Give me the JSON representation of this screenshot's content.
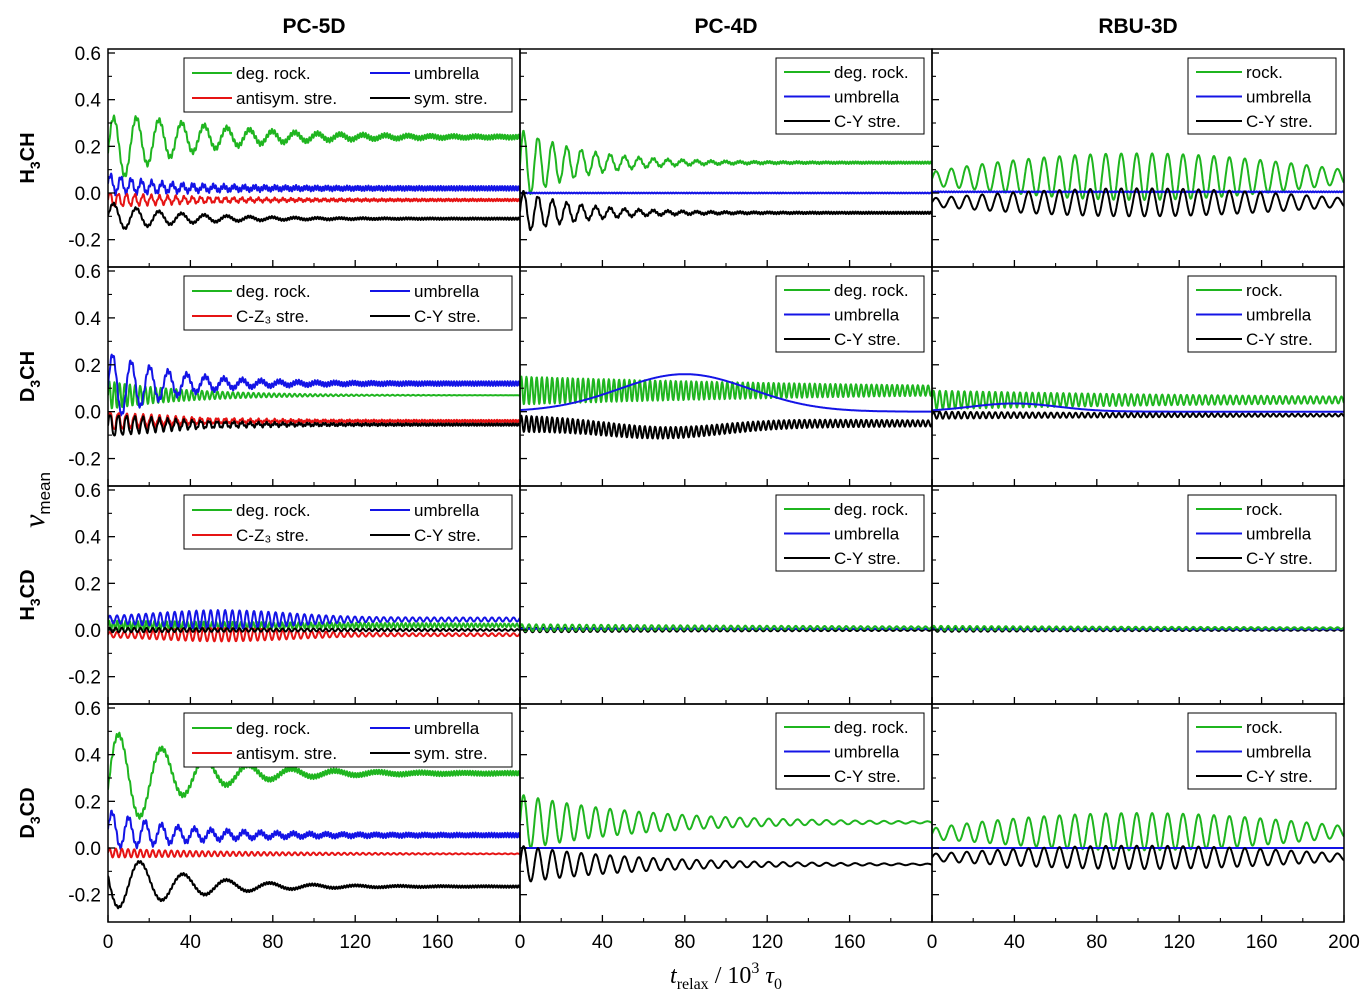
{
  "colors": {
    "green": "#1fb51f",
    "blue": "#1414e6",
    "red": "#e61414",
    "black": "#000000"
  },
  "chart_data": {
    "type": "line",
    "columns": [
      "PC-5D",
      "PC-4D",
      "RBU-3D"
    ],
    "rows": [
      {
        "label": "H",
        "sub": "3",
        "tail": "CH"
      },
      {
        "label": "D",
        "sub": "3",
        "tail": "CH"
      },
      {
        "label": "H",
        "sub": "3",
        "tail": "CD"
      },
      {
        "label": "D",
        "sub": "3",
        "tail": "CD"
      }
    ],
    "ylabel": {
      "main": "ν",
      "sub": "mean"
    },
    "xlabel": {
      "t": "t",
      "tsub": "relax",
      "mid": " / 10",
      "sup": "3",
      "tau": " τ",
      "tausub": "0"
    },
    "xlim": [
      0,
      200
    ],
    "ylim": [
      -0.3,
      0.6
    ],
    "x_ticks": [
      "0",
      "40",
      "80",
      "120",
      "160",
      "200"
    ],
    "x_tick_values": [
      0,
      40,
      80,
      120,
      160,
      200
    ],
    "x_tick_labels_first_col": [
      "0",
      "40",
      "80",
      "120",
      "160"
    ],
    "y_ticks": [
      "-0.2",
      "0.0",
      "0.2",
      "0.4",
      "0.6"
    ],
    "y_tick_values": [
      -0.2,
      0.0,
      0.2,
      0.4,
      0.6
    ],
    "panels": [
      {
        "row": 0,
        "col": 0,
        "legend": {
          "layout": "two-column",
          "entries": [
            {
              "label": "deg. rock.",
              "color": "green"
            },
            {
              "label": "umbrella",
              "color": "blue"
            },
            {
              "label": "antisym. stre.",
              "color": "red"
            },
            {
              "label": "sym. stre.",
              "color": "black"
            }
          ]
        },
        "series": [
          {
            "color": "green",
            "base": 0.24,
            "start": 0.17,
            "amp": 0.15,
            "decay": 45,
            "period": 11,
            "hf": 0.01
          },
          {
            "color": "blue",
            "base": 0.02,
            "start": 0.04,
            "amp": 0.04,
            "decay": 40,
            "period": 5,
            "hf": 0.01
          },
          {
            "color": "red",
            "base": -0.03,
            "start": -0.03,
            "amp": 0.03,
            "decay": 50,
            "period": 4,
            "hf": 0.005
          },
          {
            "color": "black",
            "base": -0.11,
            "start": -0.1,
            "amp": 0.06,
            "decay": 35,
            "period": 11,
            "hf": 0.005
          }
        ]
      },
      {
        "row": 0,
        "col": 1,
        "legend": {
          "layout": "one-column",
          "entries": [
            {
              "label": "deg. rock.",
              "color": "green"
            },
            {
              "label": "umbrella",
              "color": "blue"
            },
            {
              "label": "C-Y stre.",
              "color": "black"
            }
          ]
        },
        "series": [
          {
            "color": "green",
            "base": 0.13,
            "start": 0.12,
            "amp": 0.15,
            "decay": 30,
            "period": 7,
            "hf": 0.005
          },
          {
            "color": "blue",
            "base": 0.0,
            "start": 0.0,
            "amp": 0.0,
            "decay": 1,
            "period": 10,
            "hf": 0.002
          },
          {
            "color": "black",
            "base": -0.085,
            "start": -0.08,
            "amp": 0.09,
            "decay": 30,
            "period": 7,
            "hf": 0.005
          }
        ]
      },
      {
        "row": 0,
        "col": 2,
        "legend": {
          "layout": "one-column",
          "entries": [
            {
              "label": "rock.",
              "color": "green"
            },
            {
              "label": "umbrella",
              "color": "blue"
            },
            {
              "label": "C-Y stre.",
              "color": "black"
            }
          ]
        },
        "series": [
          {
            "color": "green",
            "base": 0.07,
            "start": 0.06,
            "amp": 0.1,
            "decay": 140,
            "period": 7.5,
            "hf": 0.0,
            "env": "bump"
          },
          {
            "color": "blue",
            "base": 0.005,
            "start": 0.005,
            "amp": 0.0,
            "decay": 1,
            "period": 10,
            "hf": 0.002
          },
          {
            "color": "black",
            "base": -0.04,
            "start": -0.04,
            "amp": 0.06,
            "decay": 140,
            "period": 7.5,
            "hf": 0.0,
            "env": "bump"
          }
        ]
      },
      {
        "row": 1,
        "col": 0,
        "legend": {
          "layout": "two-column",
          "entries": [
            {
              "label": "deg. rock.",
              "color": "green"
            },
            {
              "label": "umbrella",
              "color": "blue"
            },
            {
              "label": "C-Z₃ stre.",
              "color": "red"
            },
            {
              "label": "C-Y stre.",
              "color": "black"
            }
          ]
        },
        "series": [
          {
            "color": "green",
            "base": 0.07,
            "start": 0.07,
            "amp": 0.06,
            "decay": 40,
            "period": 2.5,
            "hf": 0.0
          },
          {
            "color": "blue",
            "base": 0.12,
            "start": 0.1,
            "amp": 0.15,
            "decay": 30,
            "period": 9,
            "hf": 0.01
          },
          {
            "color": "red",
            "base": -0.04,
            "start": -0.04,
            "amp": 0.04,
            "decay": 40,
            "period": 4,
            "hf": 0.005
          },
          {
            "color": "black",
            "base": -0.055,
            "start": -0.06,
            "amp": 0.05,
            "decay": 40,
            "period": 4,
            "hf": 0.005
          }
        ]
      },
      {
        "row": 1,
        "col": 1,
        "legend": {
          "layout": "one-column",
          "entries": [
            {
              "label": "deg. rock.",
              "color": "green"
            },
            {
              "label": "umbrella",
              "color": "blue"
            },
            {
              "label": "C-Y stre.",
              "color": "black"
            }
          ]
        },
        "series": [
          {
            "color": "green",
            "base": 0.09,
            "start": 0.09,
            "amp": 0.06,
            "decay": 200,
            "period": 2.5,
            "hf": 0.0
          },
          {
            "color": "blue",
            "base": 0.0,
            "start": 0.0,
            "amp": 0.0,
            "decay": 1,
            "period": 10,
            "hf": 0.0,
            "env": "hump",
            "hump": 0.16,
            "humpcenter": 80,
            "humpwidth": 45
          },
          {
            "color": "black",
            "base": -0.05,
            "start": -0.05,
            "amp": 0.035,
            "decay": 200,
            "period": 2.5,
            "hf": 0.0,
            "env": "dip",
            "dip": 0.04
          }
        ]
      },
      {
        "row": 1,
        "col": 2,
        "legend": {
          "layout": "one-column",
          "entries": [
            {
              "label": "rock.",
              "color": "green"
            },
            {
              "label": "umbrella",
              "color": "blue"
            },
            {
              "label": "C-Y stre.",
              "color": "black"
            }
          ]
        },
        "series": [
          {
            "color": "green",
            "base": 0.05,
            "start": 0.05,
            "amp": 0.04,
            "decay": 200,
            "period": 3,
            "hf": 0.0
          },
          {
            "color": "blue",
            "base": 0.0,
            "start": 0.0,
            "amp": 0.0,
            "decay": 1,
            "period": 10,
            "hf": 0.0,
            "env": "hump",
            "hump": 0.035,
            "humpcenter": 40,
            "humpwidth": 30
          },
          {
            "color": "black",
            "base": -0.015,
            "start": -0.015,
            "amp": 0.015,
            "decay": 200,
            "period": 3,
            "hf": 0.0
          }
        ]
      },
      {
        "row": 2,
        "col": 0,
        "legend": {
          "layout": "two-column",
          "entries": [
            {
              "label": "deg. rock.",
              "color": "green"
            },
            {
              "label": "umbrella",
              "color": "blue"
            },
            {
              "label": "C-Z₃ stre.",
              "color": "red"
            },
            {
              "label": "C-Y stre.",
              "color": "black"
            }
          ]
        },
        "series": [
          {
            "color": "green",
            "base": 0.02,
            "start": 0.02,
            "amp": 0.02,
            "decay": 200,
            "period": 2,
            "hf": 0.0
          },
          {
            "color": "blue",
            "base": 0.045,
            "start": 0.045,
            "amp": 0.035,
            "decay": 200,
            "period": 3.5,
            "hf": 0.0,
            "env": "bump2"
          },
          {
            "color": "red",
            "base": -0.02,
            "start": -0.02,
            "amp": 0.025,
            "decay": 200,
            "period": 3.5,
            "hf": 0.0,
            "env": "bump2"
          },
          {
            "color": "black",
            "base": 0.0,
            "start": 0.0,
            "amp": 0.01,
            "decay": 200,
            "period": 3,
            "hf": 0.0
          }
        ]
      },
      {
        "row": 2,
        "col": 1,
        "legend": {
          "layout": "one-column",
          "entries": [
            {
              "label": "deg. rock.",
              "color": "green"
            },
            {
              "label": "umbrella",
              "color": "blue"
            },
            {
              "label": "C-Y stre.",
              "color": "black"
            }
          ]
        },
        "series": [
          {
            "color": "black",
            "base": 0.0,
            "start": 0.0,
            "amp": 0.01,
            "decay": 200,
            "period": 3.5,
            "hf": 0.0
          },
          {
            "color": "blue",
            "base": 0.005,
            "start": 0.005,
            "amp": 0.0,
            "decay": 1,
            "period": 10,
            "hf": 0.0
          },
          {
            "color": "green",
            "base": 0.01,
            "start": 0.01,
            "amp": 0.015,
            "decay": 200,
            "period": 3.5,
            "hf": 0.0
          }
        ]
      },
      {
        "row": 2,
        "col": 2,
        "legend": {
          "layout": "one-column",
          "entries": [
            {
              "label": "rock.",
              "color": "green"
            },
            {
              "label": "umbrella",
              "color": "blue"
            },
            {
              "label": "C-Y stre.",
              "color": "black"
            }
          ]
        },
        "series": [
          {
            "color": "black",
            "base": 0.0,
            "start": 0.0,
            "amp": 0.008,
            "decay": 200,
            "period": 3.5,
            "hf": 0.0
          },
          {
            "color": "blue",
            "base": 0.003,
            "start": 0.003,
            "amp": 0.0,
            "decay": 1,
            "period": 10,
            "hf": 0.0
          },
          {
            "color": "green",
            "base": 0.008,
            "start": 0.008,
            "amp": 0.01,
            "decay": 200,
            "period": 3.5,
            "hf": 0.0
          }
        ]
      },
      {
        "row": 3,
        "col": 0,
        "legend": {
          "layout": "two-column",
          "entries": [
            {
              "label": "deg. rock.",
              "color": "green"
            },
            {
              "label": "umbrella",
              "color": "blue"
            },
            {
              "label": "antisym. stre.",
              "color": "red"
            },
            {
              "label": "sym. stre.",
              "color": "black"
            }
          ]
        },
        "series": [
          {
            "color": "green",
            "base": 0.32,
            "start": 0.25,
            "amp": 0.25,
            "decay": 35,
            "period": 21,
            "hf": 0.01
          },
          {
            "color": "blue",
            "base": 0.055,
            "start": 0.08,
            "amp": 0.08,
            "decay": 40,
            "period": 8,
            "hf": 0.01
          },
          {
            "color": "red",
            "base": -0.025,
            "start": -0.02,
            "amp": 0.02,
            "decay": 80,
            "period": 3,
            "hf": 0.0
          },
          {
            "color": "black",
            "base": -0.165,
            "start": -0.12,
            "amp": 0.14,
            "decay": 35,
            "period": 21,
            "hf": 0.005,
            "phase": 3.14
          }
        ]
      },
      {
        "row": 3,
        "col": 1,
        "legend": {
          "layout": "one-column",
          "entries": [
            {
              "label": "deg. rock.",
              "color": "green"
            },
            {
              "label": "umbrella",
              "color": "blue"
            },
            {
              "label": "C-Y stre.",
              "color": "black"
            }
          ]
        },
        "series": [
          {
            "color": "green",
            "base": 0.11,
            "start": 0.11,
            "amp": 0.12,
            "decay": 60,
            "period": 7,
            "hf": 0.0
          },
          {
            "color": "blue",
            "base": 0.0,
            "start": 0.0,
            "amp": 0.0,
            "decay": 1,
            "period": 10,
            "hf": 0.0
          },
          {
            "color": "black",
            "base": -0.07,
            "start": -0.07,
            "amp": 0.08,
            "decay": 60,
            "period": 7,
            "hf": 0.0
          }
        ]
      },
      {
        "row": 3,
        "col": 2,
        "legend": {
          "layout": "one-column",
          "entries": [
            {
              "label": "rock.",
              "color": "green"
            },
            {
              "label": "umbrella",
              "color": "blue"
            },
            {
              "label": "C-Y stre.",
              "color": "black"
            }
          ]
        },
        "series": [
          {
            "color": "green",
            "base": 0.07,
            "start": 0.06,
            "amp": 0.08,
            "decay": 140,
            "period": 7.5,
            "hf": 0.0,
            "env": "bump"
          },
          {
            "color": "blue",
            "base": 0.0,
            "start": 0.0,
            "amp": 0.0,
            "decay": 1,
            "period": 10,
            "hf": 0.0
          },
          {
            "color": "black",
            "base": -0.04,
            "start": -0.04,
            "amp": 0.05,
            "decay": 140,
            "period": 7.5,
            "hf": 0.0,
            "env": "bump"
          }
        ]
      }
    ]
  }
}
